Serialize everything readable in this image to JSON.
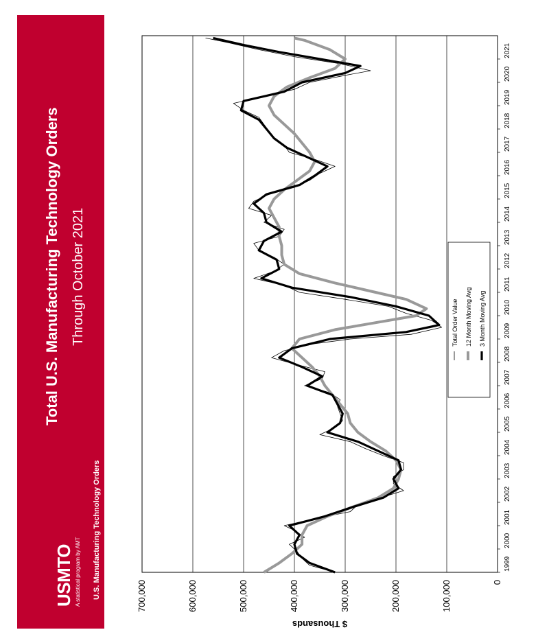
{
  "banner": {
    "title": "Total U.S. Manufacturing Technology Orders",
    "subtitle": "Through October 2021",
    "logo": "USMTO",
    "tagline": "A statistical program by AMT",
    "source": "U.S. Manufacturing Technology Orders",
    "color": "#c0002f"
  },
  "chart_data": {
    "type": "line",
    "orientation": "rotated-90-clockwise",
    "title": "",
    "xlabel": "",
    "ylabel": "$ Thousands",
    "ylim": [
      0,
      700000
    ],
    "yticks": [
      "0",
      "100,000",
      "200,000",
      "300,000",
      "400,000",
      "500,000",
      "600,000",
      "700,000"
    ],
    "xticks": [
      "1999",
      "2000",
      "2001",
      "2002",
      "2003",
      "2004",
      "2005",
      "2006",
      "2007",
      "2008",
      "2009",
      "2010",
      "2011",
      "2012",
      "2013",
      "2014",
      "2015",
      "2016",
      "2017",
      "2018",
      "2019",
      "2020",
      "2021"
    ],
    "xlim": [
      1999.0,
      2022.0
    ],
    "grid": true,
    "legend": {
      "placement": "center"
    },
    "series": [
      {
        "name": "Total Order Value",
        "color": "#000000",
        "points": [
          [
            1999.0,
            320000
          ],
          [
            1999.3,
            370000
          ],
          [
            1999.6,
            385000
          ],
          [
            1999.9,
            395000
          ],
          [
            2000.2,
            410000
          ],
          [
            2000.5,
            380000
          ],
          [
            2000.8,
            400000
          ],
          [
            2001.0,
            420000
          ],
          [
            2001.3,
            360000
          ],
          [
            2001.6,
            290000
          ],
          [
            2001.9,
            275000
          ],
          [
            2002.2,
            230000
          ],
          [
            2002.5,
            185000
          ],
          [
            2002.8,
            205000
          ],
          [
            2003.1,
            205000
          ],
          [
            2003.4,
            185000
          ],
          [
            2003.7,
            185000
          ],
          [
            2004.0,
            225000
          ],
          [
            2004.3,
            260000
          ],
          [
            2004.6,
            290000
          ],
          [
            2004.9,
            350000
          ],
          [
            2005.2,
            320000
          ],
          [
            2005.5,
            305000
          ],
          [
            2005.8,
            310000
          ],
          [
            2006.1,
            315000
          ],
          [
            2006.4,
            310000
          ],
          [
            2006.7,
            330000
          ],
          [
            2007.0,
            380000
          ],
          [
            2007.3,
            345000
          ],
          [
            2007.6,
            340000
          ],
          [
            2007.9,
            395000
          ],
          [
            2008.2,
            445000
          ],
          [
            2008.5,
            420000
          ],
          [
            2008.8,
            360000
          ],
          [
            2009.0,
            290000
          ],
          [
            2009.2,
            170000
          ],
          [
            2009.5,
            110000
          ],
          [
            2009.8,
            130000
          ],
          [
            2010.1,
            180000
          ],
          [
            2010.4,
            215000
          ],
          [
            2010.7,
            300000
          ],
          [
            2011.0,
            390000
          ],
          [
            2011.3,
            420000
          ],
          [
            2011.6,
            480000
          ],
          [
            2011.9,
            440000
          ],
          [
            2012.2,
            420000
          ],
          [
            2012.5,
            440000
          ],
          [
            2012.8,
            470000
          ],
          [
            2013.1,
            480000
          ],
          [
            2013.4,
            430000
          ],
          [
            2013.7,
            420000
          ],
          [
            2014.0,
            460000
          ],
          [
            2014.3,
            445000
          ],
          [
            2014.6,
            490000
          ],
          [
            2014.9,
            480000
          ],
          [
            2015.2,
            450000
          ],
          [
            2015.5,
            400000
          ],
          [
            2015.8,
            370000
          ],
          [
            2016.1,
            350000
          ],
          [
            2016.4,
            320000
          ],
          [
            2016.7,
            360000
          ],
          [
            2017.0,
            410000
          ],
          [
            2017.3,
            420000
          ],
          [
            2017.6,
            440000
          ],
          [
            2017.9,
            450000
          ],
          [
            2018.2,
            460000
          ],
          [
            2018.5,
            470000
          ],
          [
            2018.8,
            500000
          ],
          [
            2019.1,
            520000
          ],
          [
            2019.4,
            460000
          ],
          [
            2019.7,
            400000
          ],
          [
            2020.0,
            370000
          ],
          [
            2020.3,
            300000
          ],
          [
            2020.5,
            250000
          ],
          [
            2020.8,
            310000
          ],
          [
            2021.1,
            400000
          ],
          [
            2021.4,
            470000
          ],
          [
            2021.7,
            530000
          ],
          [
            2021.9,
            575000
          ]
        ]
      },
      {
        "name": "12 Month Moving Avg",
        "color": "#999999",
        "points": [
          [
            1999.0,
            460000
          ],
          [
            1999.4,
            430000
          ],
          [
            1999.8,
            405000
          ],
          [
            2000.2,
            385000
          ],
          [
            2000.6,
            385000
          ],
          [
            2001.0,
            375000
          ],
          [
            2001.4,
            335000
          ],
          [
            2001.8,
            285000
          ],
          [
            2002.2,
            235000
          ],
          [
            2002.6,
            205000
          ],
          [
            2003.0,
            195000
          ],
          [
            2003.4,
            190000
          ],
          [
            2003.8,
            200000
          ],
          [
            2004.2,
            220000
          ],
          [
            2004.6,
            250000
          ],
          [
            2005.0,
            275000
          ],
          [
            2005.4,
            290000
          ],
          [
            2005.8,
            295000
          ],
          [
            2006.2,
            310000
          ],
          [
            2006.6,
            325000
          ],
          [
            2007.0,
            340000
          ],
          [
            2007.4,
            350000
          ],
          [
            2007.8,
            365000
          ],
          [
            2008.2,
            385000
          ],
          [
            2008.6,
            405000
          ],
          [
            2009.0,
            390000
          ],
          [
            2009.4,
            320000
          ],
          [
            2009.7,
            240000
          ],
          [
            2010.0,
            160000
          ],
          [
            2010.3,
            140000
          ],
          [
            2010.7,
            180000
          ],
          [
            2011.0,
            240000
          ],
          [
            2011.4,
            320000
          ],
          [
            2011.8,
            390000
          ],
          [
            2012.2,
            420000
          ],
          [
            2012.6,
            425000
          ],
          [
            2013.0,
            425000
          ],
          [
            2013.4,
            430000
          ],
          [
            2013.8,
            430000
          ],
          [
            2014.2,
            440000
          ],
          [
            2014.6,
            450000
          ],
          [
            2015.0,
            440000
          ],
          [
            2015.4,
            420000
          ],
          [
            2015.8,
            395000
          ],
          [
            2016.2,
            370000
          ],
          [
            2016.6,
            360000
          ],
          [
            2017.0,
            370000
          ],
          [
            2017.4,
            385000
          ],
          [
            2017.8,
            400000
          ],
          [
            2018.2,
            420000
          ],
          [
            2018.6,
            440000
          ],
          [
            2019.0,
            450000
          ],
          [
            2019.4,
            440000
          ],
          [
            2019.8,
            415000
          ],
          [
            2020.2,
            370000
          ],
          [
            2020.6,
            320000
          ],
          [
            2021.0,
            300000
          ],
          [
            2021.4,
            330000
          ],
          [
            2021.8,
            380000
          ],
          [
            2021.9,
            400000
          ]
        ]
      },
      {
        "name": "3 Month Moving Avg",
        "color": "#000000",
        "points": [
          [
            1999.0,
            320000
          ],
          [
            1999.4,
            370000
          ],
          [
            1999.8,
            395000
          ],
          [
            2000.2,
            400000
          ],
          [
            2000.6,
            390000
          ],
          [
            2001.0,
            410000
          ],
          [
            2001.4,
            340000
          ],
          [
            2001.8,
            285000
          ],
          [
            2002.2,
            225000
          ],
          [
            2002.6,
            195000
          ],
          [
            2003.0,
            205000
          ],
          [
            2003.4,
            190000
          ],
          [
            2003.8,
            195000
          ],
          [
            2004.2,
            235000
          ],
          [
            2004.6,
            275000
          ],
          [
            2005.0,
            335000
          ],
          [
            2005.4,
            310000
          ],
          [
            2005.8,
            305000
          ],
          [
            2006.2,
            315000
          ],
          [
            2006.6,
            325000
          ],
          [
            2007.0,
            375000
          ],
          [
            2007.4,
            345000
          ],
          [
            2007.8,
            385000
          ],
          [
            2008.2,
            430000
          ],
          [
            2008.6,
            405000
          ],
          [
            2009.0,
            330000
          ],
          [
            2009.3,
            180000
          ],
          [
            2009.6,
            115000
          ],
          [
            2010.0,
            135000
          ],
          [
            2010.4,
            200000
          ],
          [
            2010.8,
            290000
          ],
          [
            2011.2,
            405000
          ],
          [
            2011.6,
            465000
          ],
          [
            2012.0,
            430000
          ],
          [
            2012.4,
            435000
          ],
          [
            2012.8,
            470000
          ],
          [
            2013.2,
            460000
          ],
          [
            2013.6,
            425000
          ],
          [
            2014.0,
            455000
          ],
          [
            2014.4,
            460000
          ],
          [
            2014.8,
            480000
          ],
          [
            2015.2,
            455000
          ],
          [
            2015.6,
            390000
          ],
          [
            2016.0,
            360000
          ],
          [
            2016.4,
            335000
          ],
          [
            2016.8,
            375000
          ],
          [
            2017.2,
            415000
          ],
          [
            2017.6,
            440000
          ],
          [
            2018.0,
            455000
          ],
          [
            2018.4,
            470000
          ],
          [
            2018.8,
            505000
          ],
          [
            2019.2,
            500000
          ],
          [
            2019.6,
            420000
          ],
          [
            2020.0,
            385000
          ],
          [
            2020.4,
            300000
          ],
          [
            2020.7,
            270000
          ],
          [
            2021.0,
            350000
          ],
          [
            2021.3,
            430000
          ],
          [
            2021.6,
            500000
          ],
          [
            2021.9,
            560000
          ]
        ]
      }
    ]
  }
}
